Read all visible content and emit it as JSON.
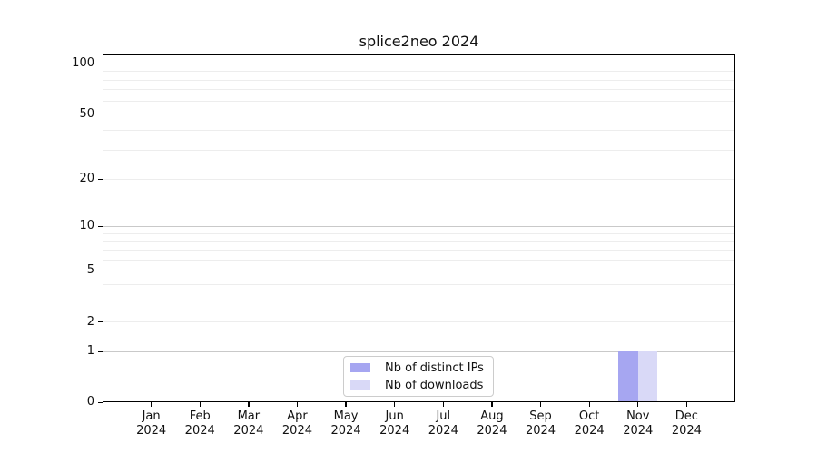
{
  "chart_data": {
    "type": "bar",
    "title": "splice2neo 2024",
    "categories": [
      "Jan",
      "Feb",
      "Mar",
      "Apr",
      "May",
      "Jun",
      "Jul",
      "Aug",
      "Sep",
      "Oct",
      "Nov",
      "Dec"
    ],
    "category_year": "2024",
    "series": [
      {
        "name": "Nb of distinct IPs",
        "color": "#a6a6f1",
        "values": [
          0,
          0,
          0,
          0,
          0,
          0,
          0,
          0,
          0,
          0,
          1,
          0
        ]
      },
      {
        "name": "Nb of downloads",
        "color": "#d9d9f7",
        "values": [
          0,
          0,
          0,
          0,
          0,
          0,
          0,
          0,
          0,
          0,
          1,
          0
        ]
      }
    ],
    "xlabel": "",
    "ylabel": "",
    "yscale": "log1p",
    "ylim": [
      0,
      113
    ],
    "y_tick_values": [
      0,
      1,
      2,
      5,
      10,
      20,
      50,
      100
    ],
    "y_major_gridlines": [
      1,
      10,
      100
    ],
    "y_minor_gridlines": [
      2,
      3,
      4,
      5,
      6,
      7,
      8,
      9,
      20,
      30,
      40,
      50,
      60,
      70,
      80,
      90
    ],
    "grid": true,
    "legend_position": "lower center",
    "colors": {
      "major_gridline": "#c9c9c9",
      "minor_gridline": "#ededed",
      "axis": "#000000",
      "legend_border": "#cccccc",
      "background": "#ffffff"
    }
  }
}
